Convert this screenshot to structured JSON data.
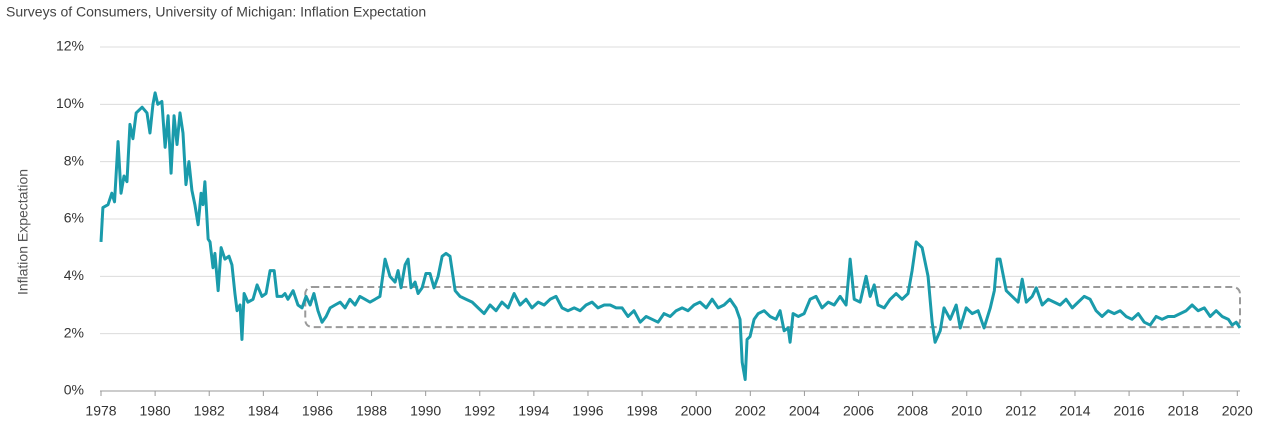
{
  "chart_data": {
    "type": "line",
    "title": "Surveys of Consumers, University of Michigan: Inflation Expectation",
    "y_label": "Inflation Expectation",
    "color": "#1a9bab",
    "grid": true,
    "xlim": [
      1978,
      2020.1
    ],
    "ylim": [
      0,
      12
    ],
    "xticks": [
      1978,
      1980,
      1982,
      1984,
      1986,
      1988,
      1990,
      1992,
      1994,
      1996,
      1998,
      2000,
      2002,
      2004,
      2006,
      2008,
      2010,
      2012,
      2014,
      2016,
      2018,
      2020
    ],
    "yticks": [
      {
        "value": 0,
        "label": "0%"
      },
      {
        "value": 2,
        "label": "2%"
      },
      {
        "value": 4,
        "label": "4%"
      },
      {
        "value": 6,
        "label": "6%"
      },
      {
        "value": 8,
        "label": "8%"
      },
      {
        "value": 10,
        "label": "10%"
      },
      {
        "value": 12,
        "label": "12%"
      }
    ],
    "highlight_box": {
      "x": [
        1985.55,
        2020.1
      ],
      "y": [
        2.23,
        3.63
      ]
    },
    "x": [
      1978.0,
      1978.07,
      1978.26,
      1978.4,
      1978.5,
      1978.63,
      1978.74,
      1978.85,
      1978.96,
      1979.07,
      1979.18,
      1979.3,
      1979.52,
      1979.7,
      1979.81,
      1979.92,
      1980.0,
      1980.1,
      1980.25,
      1980.37,
      1980.48,
      1980.59,
      1980.7,
      1980.81,
      1980.92,
      1981.03,
      1981.14,
      1981.25,
      1981.36,
      1981.47,
      1981.59,
      1981.7,
      1981.77,
      1981.84,
      1981.96,
      1982.03,
      1982.14,
      1982.21,
      1982.33,
      1982.44,
      1982.58,
      1982.73,
      1982.84,
      1982.95,
      1983.03,
      1983.14,
      1983.21,
      1983.29,
      1983.43,
      1983.62,
      1983.77,
      1983.95,
      1984.1,
      1984.25,
      1984.4,
      1984.51,
      1984.69,
      1984.8,
      1984.91,
      1985.1,
      1985.28,
      1985.43,
      1985.58,
      1985.73,
      1985.87,
      1986.02,
      1986.17,
      1986.32,
      1986.47,
      1986.65,
      1986.84,
      1987.02,
      1987.2,
      1987.39,
      1987.57,
      1987.76,
      1987.94,
      1988.13,
      1988.31,
      1988.5,
      1988.68,
      1988.87,
      1988.98,
      1989.09,
      1989.24,
      1989.35,
      1989.46,
      1989.61,
      1989.72,
      1989.87,
      1990.01,
      1990.16,
      1990.31,
      1990.46,
      1990.61,
      1990.75,
      1990.9,
      1991.09,
      1991.27,
      1991.49,
      1991.72,
      1991.94,
      1992.16,
      1992.38,
      1992.6,
      1992.82,
      1993.05,
      1993.27,
      1993.49,
      1993.71,
      1993.93,
      1994.16,
      1994.38,
      1994.6,
      1994.82,
      1995.04,
      1995.26,
      1995.49,
      1995.71,
      1995.93,
      1996.15,
      1996.37,
      1996.6,
      1996.82,
      1997.04,
      1997.26,
      1997.48,
      1997.7,
      1997.93,
      1998.15,
      1998.37,
      1998.59,
      1998.81,
      1999.04,
      1999.26,
      1999.48,
      1999.7,
      1999.92,
      2000.14,
      2000.37,
      2000.59,
      2000.81,
      2001.03,
      2001.25,
      2001.47,
      2001.62,
      2001.7,
      2001.81,
      2001.88,
      2001.99,
      2002.14,
      2002.29,
      2002.51,
      2002.73,
      2002.95,
      2003.1,
      2003.25,
      2003.4,
      2003.47,
      2003.58,
      2003.77,
      2003.99,
      2004.21,
      2004.43,
      2004.65,
      2004.88,
      2005.1,
      2005.32,
      2005.54,
      2005.69,
      2005.84,
      2006.06,
      2006.28,
      2006.43,
      2006.58,
      2006.72,
      2006.95,
      2007.17,
      2007.39,
      2007.61,
      2007.83,
      2007.98,
      2008.13,
      2008.35,
      2008.57,
      2008.72,
      2008.83,
      2009.02,
      2009.16,
      2009.39,
      2009.61,
      2009.76,
      2009.98,
      2010.2,
      2010.42,
      2010.64,
      2010.87,
      2011.02,
      2011.12,
      2011.23,
      2011.46,
      2011.68,
      2011.9,
      2012.05,
      2012.2,
      2012.42,
      2012.57,
      2012.79,
      2013.01,
      2013.23,
      2013.45,
      2013.67,
      2013.9,
      2014.12,
      2014.34,
      2014.56,
      2014.78,
      2015.0,
      2015.23,
      2015.45,
      2015.67,
      2015.89,
      2016.11,
      2016.34,
      2016.56,
      2016.78,
      2017.0,
      2017.22,
      2017.44,
      2017.67,
      2017.89,
      2018.11,
      2018.33,
      2018.55,
      2018.78,
      2019.0,
      2019.22,
      2019.44,
      2019.67,
      2019.81,
      2019.96,
      2020.1
    ],
    "values": [
      5.2,
      6.4,
      6.5,
      6.9,
      6.6,
      8.7,
      6.9,
      7.5,
      7.3,
      9.3,
      8.8,
      9.7,
      9.9,
      9.7,
      9.0,
      10.0,
      10.4,
      10.0,
      10.1,
      8.5,
      9.6,
      7.6,
      9.6,
      8.6,
      9.7,
      9.0,
      7.2,
      8.0,
      7.0,
      6.5,
      5.8,
      6.9,
      6.5,
      7.3,
      5.3,
      5.2,
      4.3,
      4.8,
      3.5,
      5.0,
      4.6,
      4.7,
      4.4,
      3.4,
      2.8,
      3.0,
      1.8,
      3.4,
      3.1,
      3.2,
      3.7,
      3.3,
      3.4,
      4.2,
      4.2,
      3.3,
      3.3,
      3.4,
      3.2,
      3.5,
      3.0,
      2.9,
      3.3,
      3.0,
      3.4,
      2.8,
      2.4,
      2.6,
      2.9,
      3.0,
      3.1,
      2.9,
      3.2,
      3.0,
      3.3,
      3.2,
      3.1,
      3.2,
      3.3,
      4.6,
      4.0,
      3.8,
      4.2,
      3.6,
      4.4,
      4.6,
      3.6,
      3.8,
      3.4,
      3.6,
      4.1,
      4.1,
      3.6,
      4.0,
      4.7,
      4.8,
      4.7,
      3.5,
      3.3,
      3.2,
      3.1,
      2.9,
      2.7,
      3.0,
      2.8,
      3.1,
      2.9,
      3.4,
      3.0,
      3.2,
      2.9,
      3.1,
      3.0,
      3.2,
      3.3,
      2.9,
      2.8,
      2.9,
      2.8,
      3.0,
      3.1,
      2.9,
      3.0,
      3.0,
      2.9,
      2.9,
      2.6,
      2.8,
      2.4,
      2.6,
      2.5,
      2.4,
      2.7,
      2.6,
      2.8,
      2.9,
      2.8,
      3.0,
      3.1,
      2.9,
      3.2,
      2.9,
      3.0,
      3.2,
      2.9,
      2.5,
      1.0,
      0.4,
      1.8,
      1.9,
      2.5,
      2.7,
      2.8,
      2.6,
      2.5,
      2.8,
      2.1,
      2.2,
      1.7,
      2.7,
      2.6,
      2.7,
      3.2,
      3.3,
      2.9,
      3.1,
      3.0,
      3.3,
      3.0,
      4.6,
      3.2,
      3.1,
      4.0,
      3.3,
      3.7,
      3.0,
      2.9,
      3.2,
      3.4,
      3.2,
      3.4,
      4.2,
      5.2,
      5.0,
      4.0,
      2.4,
      1.7,
      2.1,
      2.9,
      2.5,
      3.0,
      2.2,
      2.9,
      2.7,
      2.8,
      2.2,
      2.9,
      3.5,
      4.6,
      4.6,
      3.5,
      3.3,
      3.1,
      3.9,
      3.1,
      3.3,
      3.6,
      3.0,
      3.2,
      3.1,
      3.0,
      3.2,
      2.9,
      3.1,
      3.3,
      3.2,
      2.8,
      2.6,
      2.8,
      2.7,
      2.8,
      2.6,
      2.5,
      2.7,
      2.4,
      2.3,
      2.6,
      2.5,
      2.6,
      2.6,
      2.7,
      2.8,
      3.0,
      2.8,
      2.9,
      2.6,
      2.8,
      2.6,
      2.5,
      2.3,
      2.4,
      2.2
    ]
  }
}
